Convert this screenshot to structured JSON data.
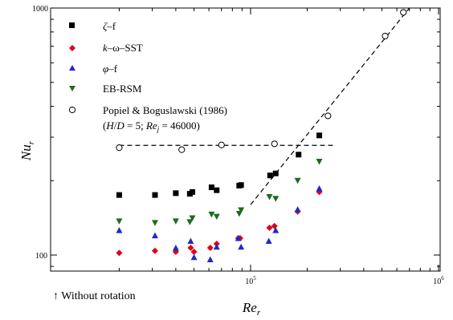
{
  "chart_data": {
    "type": "scatter",
    "title": "",
    "xlabel": "Re_r",
    "ylabel": "Nu_r",
    "xscale": "log",
    "yscale": "log",
    "xlim": [
      20000,
      1000000
    ],
    "ylim": [
      80,
      1000
    ],
    "x_ticks": [
      {
        "value": 100000,
        "label": "10",
        "exp": "5"
      },
      {
        "value": 1000000,
        "label": "10",
        "exp": "6"
      }
    ],
    "y_ticks": [
      {
        "value": 100,
        "label": "100"
      },
      {
        "value": 1000,
        "label": "1000"
      }
    ],
    "grid": false,
    "legend_position": "top-left",
    "annotation": "↑ Without rotation",
    "series": [
      {
        "name": "ζ–f",
        "marker": "square",
        "color": "#000000",
        "filled": true,
        "points": [
          [
            20000,
            175
          ],
          [
            31000,
            175
          ],
          [
            40000,
            178
          ],
          [
            47500,
            177
          ],
          [
            49000,
            180
          ],
          [
            62000,
            188
          ],
          [
            66000,
            183
          ],
          [
            87000,
            191
          ],
          [
            89000,
            192
          ],
          [
            127000,
            210
          ],
          [
            136000,
            214
          ],
          [
            180000,
            255
          ],
          [
            232000,
            305
          ]
        ]
      },
      {
        "name": "k–ω–SST",
        "marker": "diamond",
        "color": "#e0001a",
        "filled": true,
        "points": [
          [
            20000,
            102
          ],
          [
            31000,
            104
          ],
          [
            40000,
            103
          ],
          [
            48000,
            107
          ],
          [
            50000,
            103
          ],
          [
            61000,
            107
          ],
          [
            66000,
            111
          ],
          [
            86000,
            117
          ],
          [
            88000,
            117
          ],
          [
            126000,
            129
          ],
          [
            134000,
            131
          ],
          [
            178000,
            150
          ],
          [
            232000,
            180
          ]
        ]
      },
      {
        "name": "φ–f",
        "marker": "triangle-up",
        "color": "#1c2bc8",
        "filled": true,
        "points": [
          [
            20000,
            126
          ],
          [
            31000,
            120
          ],
          [
            40000,
            107
          ],
          [
            48000,
            114
          ],
          [
            50000,
            98
          ],
          [
            61000,
            96
          ],
          [
            66000,
            108
          ],
          [
            86000,
            117
          ],
          [
            89000,
            108
          ],
          [
            125000,
            114
          ],
          [
            136000,
            126
          ],
          [
            178000,
            153
          ],
          [
            232000,
            186
          ]
        ]
      },
      {
        "name": "EB-RSM",
        "marker": "triangle-down",
        "color": "#1e6b1e",
        "filled": true,
        "points": [
          [
            20000,
            137
          ],
          [
            31000,
            135
          ],
          [
            40000,
            137
          ],
          [
            47500,
            136
          ],
          [
            49000,
            141
          ],
          [
            62000,
            146
          ],
          [
            66000,
            143
          ],
          [
            87000,
            147
          ],
          [
            89000,
            152
          ],
          [
            126000,
            172
          ],
          [
            136000,
            169
          ],
          [
            178000,
            200
          ],
          [
            232000,
            239
          ]
        ]
      },
      {
        "name": "Popiel & Boguslawski (1986)",
        "name_line2": "(H/D = 5; Re_j = 46000)",
        "marker": "circle",
        "color": "#000000",
        "filled": false,
        "points": [
          [
            20000,
            272
          ],
          [
            43000,
            267
          ],
          [
            70000,
            279
          ],
          [
            134000,
            282
          ],
          [
            258000,
            366
          ],
          [
            520000,
            770
          ],
          [
            650000,
            960
          ]
        ]
      }
    ],
    "reference_lines": [
      {
        "style": "dashed",
        "points": [
          [
            20000,
            278
          ],
          [
            280000,
            278
          ]
        ]
      },
      {
        "style": "dashed",
        "points": [
          [
            100000,
            160
          ],
          [
            700000,
            1000
          ]
        ]
      }
    ]
  },
  "legend": {
    "zeta_f": {
      "sym": "ζ",
      "rest": "–f"
    },
    "k_omega_sst": {
      "k": "k",
      "rest": "–ω–SST"
    },
    "phi_f": {
      "sym": "φ",
      "rest": "–f"
    },
    "eb_rsm": "EB-RSM",
    "popiel_line1": "Popiel & Boguslawski (1986)",
    "popiel_line2": {
      "open": "(",
      "h": "H",
      "slash": "/",
      "d": "D",
      "eq1": " = 5; ",
      "re": "Re",
      "sub": "j",
      "eq2": " = 46000)"
    }
  },
  "axes": {
    "ylabel": {
      "main": "Nu",
      "sub": "r"
    },
    "xlabel": {
      "main": "Re",
      "sub": "r"
    }
  }
}
